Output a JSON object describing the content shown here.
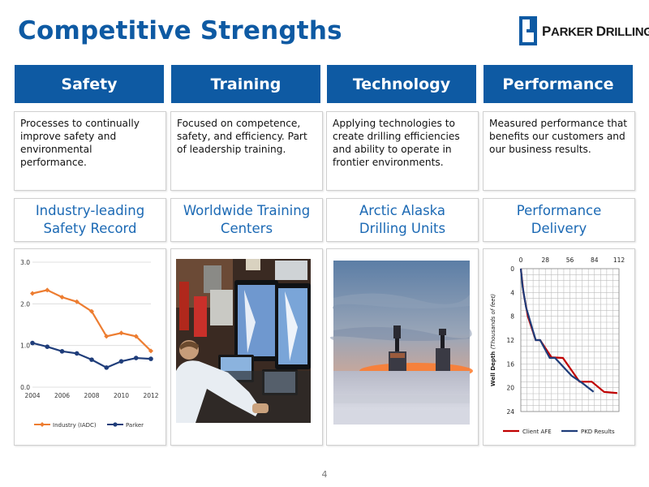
{
  "header": {
    "title": "Competitive Strengths",
    "logo_text_first": "P",
    "logo_text_rest": "ARKER ",
    "logo_text_first2": "D",
    "logo_text_rest2": "RILLING"
  },
  "columns": [
    {
      "heading": "Safety",
      "description": "Processes to continually improve safety and environmental performance.",
      "subheading": "Industry-leading\nSafety Record"
    },
    {
      "heading": "Training",
      "description": "Focused on competence, safety, and efficiency. Part of leadership training.",
      "subheading": "Worldwide Training\nCenters"
    },
    {
      "heading": "Technology",
      "description": "Applying technologies to create drilling efficiencies and ability to operate in frontier environments.",
      "subheading": "Arctic Alaska\nDrilling Units"
    },
    {
      "heading": "Performance",
      "description": "Measured performance that benefits our customers and our business results.",
      "subheading": "Performance\nDelivery"
    }
  ],
  "colors": {
    "brand_blue": "#0e5aa3",
    "industry_line": "#ed7d31",
    "parker_line": "#1f3d7a",
    "client_afe_line": "#c00000",
    "pkd_results_line": "#1f3d7a"
  },
  "chart_data": [
    {
      "type": "line",
      "x": [
        2004,
        2005,
        2006,
        2007,
        2008,
        2009,
        2010,
        2011,
        2012
      ],
      "series": [
        {
          "name": "Industry (IADC)",
          "values": [
            2.25,
            2.33,
            2.16,
            2.05,
            1.82,
            1.22,
            1.3,
            1.22,
            0.87
          ]
        },
        {
          "name": "Parker",
          "values": [
            1.06,
            0.97,
            0.86,
            0.81,
            0.66,
            0.47,
            0.62,
            0.7,
            0.68
          ]
        }
      ],
      "x_tick_labels": [
        "2004",
        "2006",
        "2008",
        "2010",
        "2012"
      ],
      "y_tick_labels": [
        "0.0",
        "1.0",
        "2.0",
        "3.0"
      ],
      "ylim": [
        0,
        3
      ],
      "legend": "bottom",
      "grid": "horizontal"
    },
    {
      "type": "line",
      "ylabel_bold": "Well Depth",
      "ylabel_italic": "(Thousands of feet)",
      "x_tick_labels": [
        "0",
        "28",
        "56",
        "84",
        "112"
      ],
      "y_tick_labels": [
        "0",
        "4",
        "8",
        "12",
        "16",
        "20",
        "24"
      ],
      "xlim": [
        0,
        112
      ],
      "ylim": [
        0,
        24
      ],
      "y_inverted": true,
      "grid": "both",
      "legend": "bottom",
      "series": [
        {
          "name": "Client AFE",
          "points": [
            [
              0,
              0
            ],
            [
              3,
              4
            ],
            [
              8,
              8
            ],
            [
              17,
              12
            ],
            [
              22,
              12
            ],
            [
              35,
              14.9
            ],
            [
              48,
              15
            ],
            [
              67,
              19
            ],
            [
              81,
              19
            ],
            [
              95,
              20.7
            ],
            [
              110,
              20.9
            ]
          ]
        },
        {
          "name": "PKD Results",
          "points": [
            [
              0,
              0
            ],
            [
              2,
              3
            ],
            [
              6,
              6.5
            ],
            [
              17,
              12
            ],
            [
              22,
              12
            ],
            [
              33,
              15
            ],
            [
              39,
              15
            ],
            [
              58,
              18
            ],
            [
              70,
              19.2
            ],
            [
              83,
              20.7
            ]
          ]
        }
      ]
    }
  ]
}
